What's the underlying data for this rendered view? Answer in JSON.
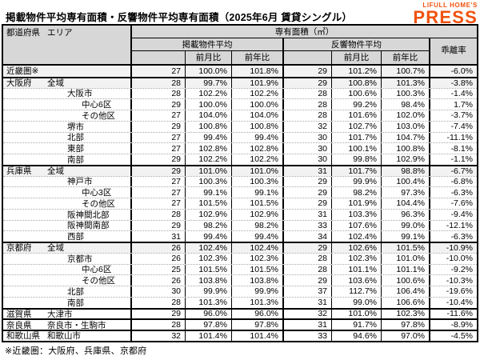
{
  "page": {
    "title": "掲載物件平均専有面積・反響物件平均専有面積（2025年6月 賃貸シングル）",
    "logo": {
      "line1": "LIFULL HOME'S",
      "line2": "PRESS",
      "color": "#F0510D"
    },
    "footnote": "※近畿圏：大阪府、兵庫県、京都府"
  },
  "table": {
    "headers": {
      "prefecture": "都道府県",
      "area": "エリア",
      "unit_group": "専有面積（㎡）",
      "listed": "掲載物件平均",
      "response": "反響物件平均",
      "mom": "前月比",
      "yoy": "前年比",
      "divergence": "乖離率"
    },
    "rows": [
      {
        "pref": "近畿圏※",
        "area": "",
        "indent": 0,
        "shaded": true,
        "section": false,
        "listed": "27",
        "listed_mom": "100.0%",
        "listed_yoy": "101.8%",
        "resp": "29",
        "resp_mom": "101.2%",
        "resp_yoy": "100.7%",
        "div": "-6.0%"
      },
      {
        "pref": "大阪府",
        "area": "全域",
        "indent": 1,
        "shaded": true,
        "section": true,
        "listed": "28",
        "listed_mom": "99.7%",
        "listed_yoy": "101.9%",
        "resp": "29",
        "resp_mom": "100.8%",
        "resp_yoy": "101.3%",
        "div": "-3.8%"
      },
      {
        "pref": "",
        "area": "大阪市",
        "indent": 2,
        "shaded": false,
        "section": false,
        "listed": "28",
        "listed_mom": "102.2%",
        "listed_yoy": "102.2%",
        "resp": "28",
        "resp_mom": "100.6%",
        "resp_yoy": "100.3%",
        "div": "-1.4%"
      },
      {
        "pref": "",
        "area": "中心6区",
        "indent": 3,
        "shaded": false,
        "section": false,
        "listed": "29",
        "listed_mom": "100.0%",
        "listed_yoy": "100.0%",
        "resp": "28",
        "resp_mom": "99.2%",
        "resp_yoy": "98.4%",
        "div": "1.7%"
      },
      {
        "pref": "",
        "area": "その他区",
        "indent": 3,
        "shaded": false,
        "section": false,
        "listed": "27",
        "listed_mom": "104.0%",
        "listed_yoy": "104.0%",
        "resp": "28",
        "resp_mom": "101.6%",
        "resp_yoy": "102.0%",
        "div": "-3.7%"
      },
      {
        "pref": "",
        "area": "堺市",
        "indent": 2,
        "shaded": false,
        "section": false,
        "listed": "29",
        "listed_mom": "100.8%",
        "listed_yoy": "100.8%",
        "resp": "32",
        "resp_mom": "102.7%",
        "resp_yoy": "103.0%",
        "div": "-7.4%"
      },
      {
        "pref": "",
        "area": "北部",
        "indent": 2,
        "shaded": false,
        "section": false,
        "listed": "27",
        "listed_mom": "99.4%",
        "listed_yoy": "99.4%",
        "resp": "30",
        "resp_mom": "101.7%",
        "resp_yoy": "104.7%",
        "div": "-11.1%"
      },
      {
        "pref": "",
        "area": "東部",
        "indent": 2,
        "shaded": false,
        "section": false,
        "listed": "27",
        "listed_mom": "102.8%",
        "listed_yoy": "102.8%",
        "resp": "30",
        "resp_mom": "100.1%",
        "resp_yoy": "100.8%",
        "div": "-8.1%"
      },
      {
        "pref": "",
        "area": "南部",
        "indent": 2,
        "shaded": false,
        "section": false,
        "listed": "29",
        "listed_mom": "102.2%",
        "listed_yoy": "102.2%",
        "resp": "30",
        "resp_mom": "99.8%",
        "resp_yoy": "102.9%",
        "div": "-1.1%"
      },
      {
        "pref": "兵庫県",
        "area": "全域",
        "indent": 1,
        "shaded": true,
        "section": true,
        "listed": "29",
        "listed_mom": "101.0%",
        "listed_yoy": "101.0%",
        "resp": "31",
        "resp_mom": "101.7%",
        "resp_yoy": "98.8%",
        "div": "-6.7%"
      },
      {
        "pref": "",
        "area": "神戸市",
        "indent": 2,
        "shaded": false,
        "section": false,
        "listed": "27",
        "listed_mom": "100.3%",
        "listed_yoy": "100.3%",
        "resp": "29",
        "resp_mom": "99.9%",
        "resp_yoy": "100.4%",
        "div": "-6.8%"
      },
      {
        "pref": "",
        "area": "中心3区",
        "indent": 3,
        "shaded": false,
        "section": false,
        "listed": "27",
        "listed_mom": "99.1%",
        "listed_yoy": "99.1%",
        "resp": "29",
        "resp_mom": "98.2%",
        "resp_yoy": "97.3%",
        "div": "-6.3%"
      },
      {
        "pref": "",
        "area": "その他区",
        "indent": 3,
        "shaded": false,
        "section": false,
        "listed": "27",
        "listed_mom": "101.5%",
        "listed_yoy": "101.5%",
        "resp": "29",
        "resp_mom": "101.9%",
        "resp_yoy": "104.4%",
        "div": "-7.6%"
      },
      {
        "pref": "",
        "area": "阪神間北部",
        "indent": 2,
        "shaded": false,
        "section": false,
        "listed": "28",
        "listed_mom": "102.9%",
        "listed_yoy": "102.9%",
        "resp": "31",
        "resp_mom": "103.3%",
        "resp_yoy": "96.3%",
        "div": "-9.4%"
      },
      {
        "pref": "",
        "area": "阪神間南部",
        "indent": 2,
        "shaded": false,
        "section": false,
        "listed": "29",
        "listed_mom": "98.2%",
        "listed_yoy": "98.2%",
        "resp": "33",
        "resp_mom": "107.6%",
        "resp_yoy": "99.0%",
        "div": "-12.1%"
      },
      {
        "pref": "",
        "area": "西部",
        "indent": 2,
        "shaded": false,
        "section": false,
        "listed": "31",
        "listed_mom": "99.4%",
        "listed_yoy": "99.4%",
        "resp": "34",
        "resp_mom": "102.4%",
        "resp_yoy": "99.1%",
        "div": "-6.3%"
      },
      {
        "pref": "京都府",
        "area": "全域",
        "indent": 1,
        "shaded": true,
        "section": true,
        "listed": "26",
        "listed_mom": "102.4%",
        "listed_yoy": "102.4%",
        "resp": "29",
        "resp_mom": "102.6%",
        "resp_yoy": "101.5%",
        "div": "-10.9%"
      },
      {
        "pref": "",
        "area": "京都市",
        "indent": 2,
        "shaded": false,
        "section": false,
        "listed": "26",
        "listed_mom": "102.3%",
        "listed_yoy": "102.3%",
        "resp": "28",
        "resp_mom": "102.3%",
        "resp_yoy": "101.0%",
        "div": "-10.0%"
      },
      {
        "pref": "",
        "area": "中心6区",
        "indent": 3,
        "shaded": false,
        "section": false,
        "listed": "25",
        "listed_mom": "101.5%",
        "listed_yoy": "101.5%",
        "resp": "28",
        "resp_mom": "101.1%",
        "resp_yoy": "101.1%",
        "div": "-9.2%"
      },
      {
        "pref": "",
        "area": "その他区",
        "indent": 3,
        "shaded": false,
        "section": false,
        "listed": "26",
        "listed_mom": "103.8%",
        "listed_yoy": "103.8%",
        "resp": "29",
        "resp_mom": "103.6%",
        "resp_yoy": "100.6%",
        "div": "-10.3%"
      },
      {
        "pref": "",
        "area": "北部",
        "indent": 2,
        "shaded": false,
        "section": false,
        "listed": "30",
        "listed_mom": "99.9%",
        "listed_yoy": "99.9%",
        "resp": "37",
        "resp_mom": "112.7%",
        "resp_yoy": "106.4%",
        "div": "-19.6%"
      },
      {
        "pref": "",
        "area": "南部",
        "indent": 2,
        "shaded": false,
        "section": false,
        "listed": "28",
        "listed_mom": "101.3%",
        "listed_yoy": "101.3%",
        "resp": "31",
        "resp_mom": "99.0%",
        "resp_yoy": "106.6%",
        "div": "-10.4%"
      },
      {
        "pref": "滋賀県",
        "area": "大津市",
        "indent": 1,
        "shaded": false,
        "section": true,
        "listed": "29",
        "listed_mom": "96.0%",
        "listed_yoy": "96.0%",
        "resp": "32",
        "resp_mom": "101.0%",
        "resp_yoy": "102.3%",
        "div": "-11.6%"
      },
      {
        "pref": "奈良県",
        "area": "奈良市・生駒市",
        "indent": 1,
        "shaded": false,
        "section": true,
        "listed": "28",
        "listed_mom": "97.8%",
        "listed_yoy": "97.8%",
        "resp": "31",
        "resp_mom": "91.7%",
        "resp_yoy": "97.8%",
        "div": "-8.9%"
      },
      {
        "pref": "和歌山県",
        "area": "和歌山市",
        "indent": 1,
        "shaded": false,
        "section": true,
        "listed": "32",
        "listed_mom": "101.4%",
        "listed_yoy": "101.4%",
        "resp": "33",
        "resp_mom": "94.6%",
        "resp_yoy": "97.0%",
        "div": "-4.5%"
      }
    ]
  }
}
